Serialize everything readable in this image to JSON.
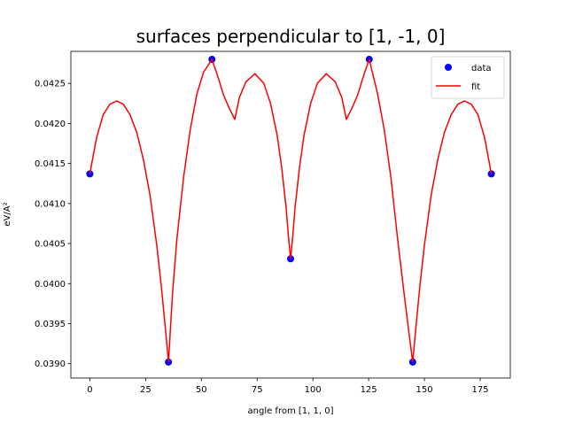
{
  "chart_data": {
    "type": "scatter",
    "title": "surfaces perpendicular to [1, -1, 0]",
    "xlabel": "angle from [1, 1, 0]",
    "ylabel": "eV/A²",
    "xlim": [
      -8.5,
      188.5
    ],
    "ylim": [
      0.03882,
      0.0429
    ],
    "xticks": [
      0,
      25,
      50,
      75,
      100,
      125,
      150,
      175
    ],
    "yticks": [
      0.039,
      0.0395,
      0.04,
      0.0405,
      0.041,
      0.0415,
      0.042,
      0.0425
    ],
    "ytick_labels": [
      "0.0390",
      "0.0395",
      "0.0400",
      "0.0405",
      "0.0410",
      "0.0415",
      "0.0420",
      "0.0425"
    ],
    "legend": {
      "position": "top-right"
    },
    "series": [
      {
        "name": "data",
        "kind": "markers",
        "color": "#0000ff",
        "x": [
          0,
          35.26,
          54.74,
          90,
          125.26,
          144.74,
          180
        ],
        "y": [
          0.04137,
          0.03902,
          0.0428,
          0.04031,
          0.0428,
          0.03902,
          0.04137
        ]
      },
      {
        "name": "fit",
        "kind": "line",
        "color": "#ff0000",
        "x": [
          0,
          3,
          6,
          9,
          12,
          15,
          18,
          21,
          24,
          27,
          30,
          32,
          34,
          35.26,
          37,
          39,
          42,
          45,
          48,
          51,
          54.74,
          57,
          60,
          62.5,
          65,
          67,
          70,
          74,
          78,
          81,
          84,
          86,
          88,
          89,
          90,
          91,
          92,
          94,
          96,
          99,
          102,
          106,
          110,
          113,
          115,
          117.5,
          120,
          123,
          125.26,
          129,
          132,
          135,
          138,
          141,
          143,
          144.74,
          146,
          148,
          150,
          153,
          156,
          159,
          162,
          165,
          168,
          171,
          174,
          177,
          180
        ],
        "y": [
          0.04137,
          0.04182,
          0.04211,
          0.04224,
          0.04228,
          0.04224,
          0.04211,
          0.04189,
          0.04155,
          0.0411,
          0.04048,
          0.03998,
          0.0394,
          0.03902,
          0.03985,
          0.04055,
          0.04132,
          0.04192,
          0.04237,
          0.04264,
          0.0428,
          0.04262,
          0.04235,
          0.04219,
          0.04205,
          0.04232,
          0.04252,
          0.04262,
          0.0425,
          0.04225,
          0.04185,
          0.04145,
          0.04095,
          0.0406,
          0.04031,
          0.0406,
          0.04095,
          0.04145,
          0.04185,
          0.04225,
          0.0425,
          0.04262,
          0.04252,
          0.04232,
          0.04205,
          0.04219,
          0.04235,
          0.04262,
          0.0428,
          0.04237,
          0.04192,
          0.04132,
          0.04055,
          0.03985,
          0.0394,
          0.03902,
          0.0394,
          0.03998,
          0.04048,
          0.0411,
          0.04155,
          0.04189,
          0.04211,
          0.04224,
          0.04228,
          0.04224,
          0.04211,
          0.04182,
          0.04137
        ]
      }
    ]
  }
}
